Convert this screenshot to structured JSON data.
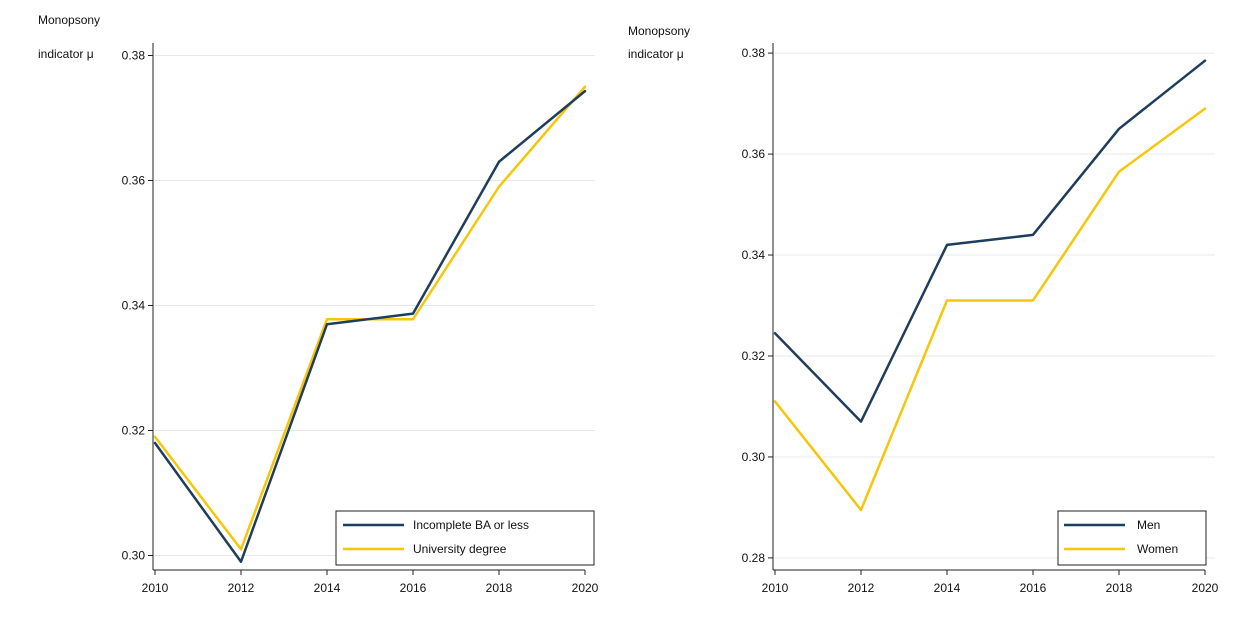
{
  "chart_data": [
    {
      "type": "line",
      "ylabel_line1": "Monopsony",
      "ylabel_line2": "indicator μ",
      "x": [
        2010,
        2012,
        2014,
        2016,
        2018,
        2020
      ],
      "xlim": [
        2010,
        2020
      ],
      "ylim": [
        0.298,
        0.382
      ],
      "yticks": [
        0.3,
        0.32,
        0.34,
        0.36,
        0.38
      ],
      "ytick_labels": [
        "0.30",
        "0.32",
        "0.34",
        "0.36",
        "0.38"
      ],
      "xtick_labels": [
        "2010",
        "2012",
        "2014",
        "2016",
        "2018",
        "2020"
      ],
      "grid": true,
      "legend_position": "bottom-right",
      "series": [
        {
          "name": "Incomplete BA or less",
          "color": "#1f3d5c",
          "values": [
            0.318,
            0.299,
            0.337,
            0.3387,
            0.363,
            0.3743
          ]
        },
        {
          "name": "University degree",
          "color": "#f5c60a",
          "values": [
            0.319,
            0.301,
            0.3378,
            0.3378,
            0.359,
            0.375
          ]
        }
      ]
    },
    {
      "type": "line",
      "ylabel_line1": "Monopsony",
      "ylabel_line2": "indicator μ",
      "x": [
        2010,
        2012,
        2014,
        2016,
        2018,
        2020
      ],
      "xlim": [
        2010,
        2020
      ],
      "ylim": [
        0.278,
        0.382
      ],
      "yticks": [
        0.28,
        0.3,
        0.32,
        0.34,
        0.36,
        0.38
      ],
      "ytick_labels": [
        "0.28",
        "0.30",
        "0.32",
        "0.34",
        "0.36",
        "0.38"
      ],
      "xtick_labels": [
        "2010",
        "2012",
        "2014",
        "2016",
        "2018",
        "2020"
      ],
      "grid": true,
      "legend_position": "bottom-right",
      "series": [
        {
          "name": "Men",
          "color": "#1f3d5c",
          "values": [
            0.3245,
            0.307,
            0.342,
            0.344,
            0.365,
            0.3785
          ]
        },
        {
          "name": "Women",
          "color": "#f5c60a",
          "values": [
            0.311,
            0.2895,
            0.331,
            0.331,
            0.3565,
            0.369
          ]
        }
      ]
    }
  ]
}
